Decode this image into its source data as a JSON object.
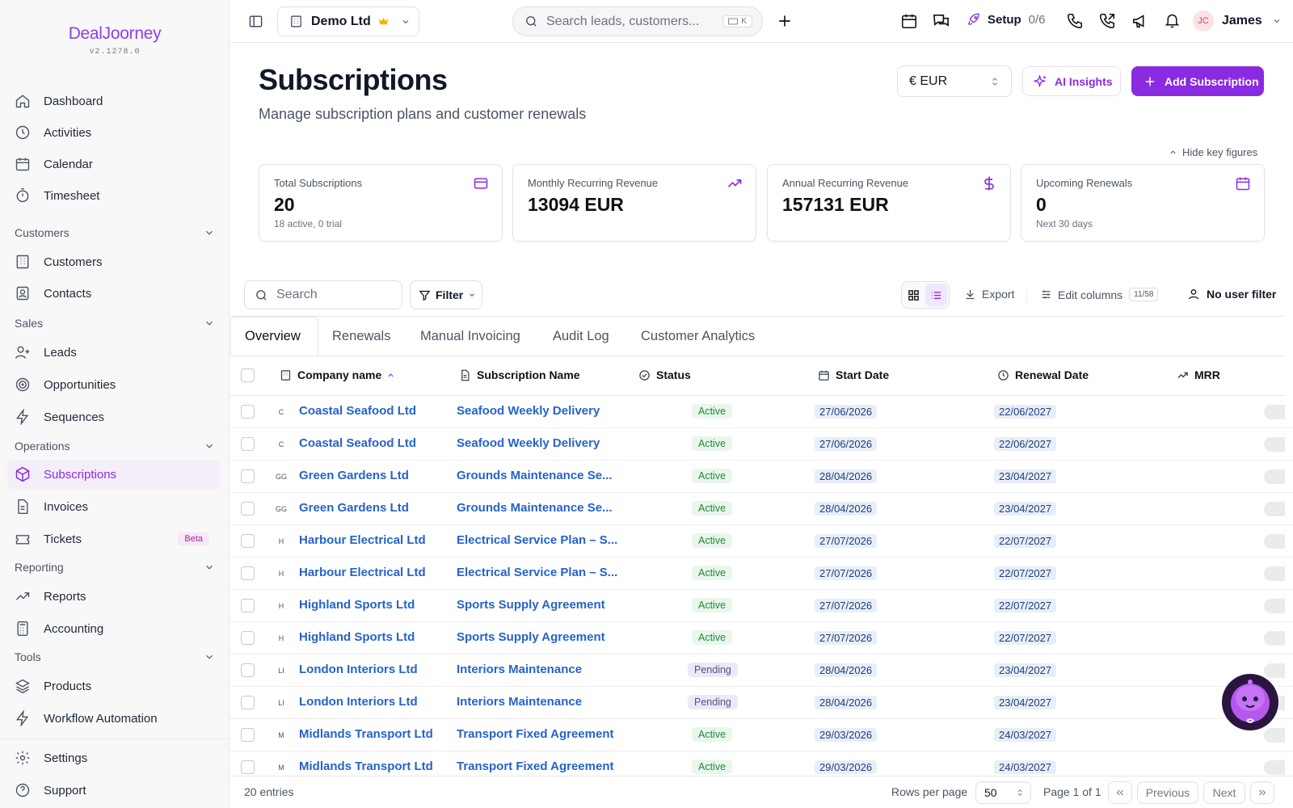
{
  "app": {
    "logo": "DealJoorney",
    "version": "v2.1278.0"
  },
  "sidebar": {
    "items": [
      {
        "label": "Dashboard"
      },
      {
        "label": "Activities"
      },
      {
        "label": "Calendar"
      },
      {
        "label": "Timesheet"
      },
      {
        "label": "Customers"
      },
      {
        "label": "Contacts"
      },
      {
        "label": "Leads"
      },
      {
        "label": "Opportunities"
      },
      {
        "label": "Sequences"
      },
      {
        "label": "Subscriptions"
      },
      {
        "label": "Invoices"
      },
      {
        "label": "Tickets",
        "badge": "Beta"
      },
      {
        "label": "Reports"
      },
      {
        "label": "Accounting"
      },
      {
        "label": "Products"
      },
      {
        "label": "Workflow Automation"
      },
      {
        "label": "Settings"
      },
      {
        "label": "Support"
      }
    ],
    "sections": [
      "Customers",
      "Sales",
      "Operations",
      "Reporting",
      "Tools"
    ]
  },
  "topbar": {
    "company": "Demo Ltd",
    "search_placeholder": "Search leads, customers...",
    "shortcut": "K",
    "setup_label": "Setup",
    "setup_progress": "0/6",
    "user_initials": "JC",
    "user_name": "James"
  },
  "page": {
    "title": "Subscriptions",
    "subtitle": "Manage subscription plans and customer renewals",
    "currency": "€ EUR",
    "ai_label": "AI Insights",
    "add_label": "Add Subscription",
    "hide_key": "Hide key figures"
  },
  "kpis": [
    {
      "label": "Total Subscriptions",
      "value": "20",
      "sub": "18 active, 0 trial"
    },
    {
      "label": "Monthly Recurring Revenue",
      "value": "13094 EUR",
      "sub": ""
    },
    {
      "label": "Annual Recurring Revenue",
      "value": "157131 EUR",
      "sub": ""
    },
    {
      "label": "Upcoming Renewals",
      "value": "0",
      "sub": "Next 30 days"
    }
  ],
  "toolbar": {
    "search_placeholder": "Search",
    "filter": "Filter",
    "export": "Export",
    "edit_columns": "Edit columns",
    "columns_count": "11/58",
    "user_filter": "No user filter"
  },
  "tabs": [
    "Overview",
    "Renewals",
    "Manual Invoicing",
    "Audit Log",
    "Customer Analytics"
  ],
  "columns": [
    "Company name",
    "Subscription Name",
    "Status",
    "Start Date",
    "Renewal Date",
    "MRR"
  ],
  "rows": [
    {
      "logo": "C",
      "company": "Coastal Seafood Ltd",
      "name": "Seafood Weekly Delivery",
      "status": "Active",
      "start": "27/06/2026",
      "renewal": "22/06/2027"
    },
    {
      "logo": "C",
      "company": "Coastal Seafood Ltd",
      "name": "Seafood Weekly Delivery",
      "status": "Active",
      "start": "27/06/2026",
      "renewal": "22/06/2027"
    },
    {
      "logo": "GG",
      "company": "Green Gardens Ltd",
      "name": "Grounds Maintenance Se...",
      "status": "Active",
      "start": "28/04/2026",
      "renewal": "23/04/2027"
    },
    {
      "logo": "GG",
      "company": "Green Gardens Ltd",
      "name": "Grounds Maintenance Se...",
      "status": "Active",
      "start": "28/04/2026",
      "renewal": "23/04/2027"
    },
    {
      "logo": "H",
      "company": "Harbour Electrical Ltd",
      "name": "Electrical Service Plan – S...",
      "status": "Active",
      "start": "27/07/2026",
      "renewal": "22/07/2027"
    },
    {
      "logo": "H",
      "company": "Harbour Electrical Ltd",
      "name": "Electrical Service Plan – S...",
      "status": "Active",
      "start": "27/07/2026",
      "renewal": "22/07/2027"
    },
    {
      "logo": "H",
      "company": "Highland Sports Ltd",
      "name": "Sports Supply Agreement",
      "status": "Active",
      "start": "27/07/2026",
      "renewal": "22/07/2027"
    },
    {
      "logo": "H",
      "company": "Highland Sports Ltd",
      "name": "Sports Supply Agreement",
      "status": "Active",
      "start": "27/07/2026",
      "renewal": "22/07/2027"
    },
    {
      "logo": "LI",
      "company": "London Interiors Ltd",
      "name": "Interiors Maintenance",
      "status": "Pending",
      "start": "28/04/2026",
      "renewal": "23/04/2027"
    },
    {
      "logo": "LI",
      "company": "London Interiors Ltd",
      "name": "Interiors Maintenance",
      "status": "Pending",
      "start": "28/04/2026",
      "renewal": "23/04/2027"
    },
    {
      "logo": "M",
      "company": "Midlands Transport Ltd",
      "name": "Transport Fixed Agreement",
      "status": "Active",
      "start": "29/03/2026",
      "renewal": "24/03/2027"
    },
    {
      "logo": "M",
      "company": "Midlands Transport Ltd",
      "name": "Transport Fixed Agreement",
      "status": "Active",
      "start": "29/03/2026",
      "renewal": "24/03/2027"
    }
  ],
  "footer": {
    "entries": "20 entries",
    "rows_label": "Rows per page",
    "rows_value": "50",
    "page_info": "Page 1 of 1",
    "prev": "Previous",
    "next": "Next"
  },
  "colors": {
    "accent": "#8a2be2",
    "link": "#2563c9"
  }
}
